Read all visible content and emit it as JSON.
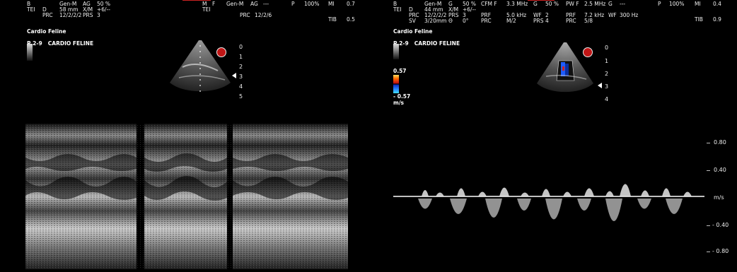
{
  "left": {
    "header": {
      "c1": [
        "B",
        "TEI"
      ],
      "c2": [
        "",
        "D",
        "PRC"
      ],
      "c3": [
        "Gen-M",
        "58 mm",
        "12/2/2/2"
      ],
      "c4": [
        "AG",
        "X/M",
        "PRS"
      ],
      "c5": [
        "50 %",
        "+6/--",
        "3"
      ],
      "mode_m": "M",
      "mode_f": "F",
      "mode_gen": "Gen-M",
      "mode_ag": "AG",
      "mode_dash": "---",
      "tei2": "TEI",
      "prc2_label": "PRC",
      "prc2_value": "12/2/6",
      "p_label": "P",
      "p_value": "100%",
      "mi_label": "MI",
      "mi_value": "0.7",
      "tib_label": "TIB",
      "tib_value": "0.5"
    },
    "preset_title": "Cardio Feline",
    "preset_probe": "P 2-9",
    "preset_name": "CARDIO FELINE",
    "depth_scale": [
      "0",
      "1",
      "2",
      "3",
      "4",
      "5"
    ]
  },
  "right": {
    "header": {
      "c1": [
        "B",
        "TEI"
      ],
      "c2": [
        "",
        "D",
        "PRC",
        "SV"
      ],
      "c3": [
        "Gen-M",
        "44 mm",
        "12/2/2/2",
        "3/20mm"
      ],
      "c4": [
        "G",
        "X/M",
        "PRS",
        "Θ"
      ],
      "c5": [
        "50 %",
        "+6/--",
        "3",
        "0°"
      ],
      "cfm": [
        "CFM F",
        "",
        "PRF",
        "PRC"
      ],
      "cfm_vals": [
        "3.3 MHz",
        "",
        "5.0 kHz",
        "M/2"
      ],
      "cfm_g": [
        "G",
        "",
        "WF",
        "PRS"
      ],
      "cfm_gv": [
        "50 %",
        "",
        "2",
        "4"
      ],
      "pw": [
        "PW F",
        "",
        "PRF",
        "PRC"
      ],
      "pw_vals": [
        "2.5 MHz",
        "",
        "7.2 kHz",
        "5/8"
      ],
      "pw_g": [
        "G",
        "",
        "WF",
        ""
      ],
      "pw_gv": [
        "---",
        "",
        "300 Hz",
        ""
      ],
      "p_label": "P",
      "p_value": "100%",
      "mi_label": "MI",
      "mi_value": "0.4",
      "tib_label": "TIB",
      "tib_value": "0.9"
    },
    "preset_title": "Cardio Feline",
    "preset_probe": "P 2-9",
    "preset_name": "CARDIO FELINE",
    "color_max": "0.57",
    "color_min": "- 0.57",
    "color_unit": "m/s",
    "depth_scale": [
      "0",
      "1",
      "2",
      "3",
      "4"
    ],
    "velocity_scale": [
      "0.80",
      "0.40",
      "m/s",
      "- 0.40",
      "- 0.80"
    ]
  },
  "colors": {
    "doppler_red": "#cc2222",
    "doppler_blue": "#1e5cff",
    "accent_red": "#c01616"
  }
}
